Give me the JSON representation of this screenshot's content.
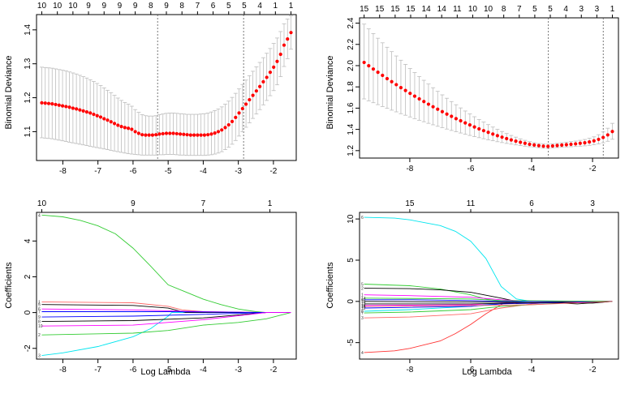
{
  "chart_data": [
    {
      "type": "scatter",
      "panel": "cv-deviance-left",
      "xlabel": "",
      "ylabel": "Binomial Deviance",
      "xlim": [
        -8.75,
        -1.35
      ],
      "ylim": [
        1.015,
        1.445
      ],
      "xticks": [
        "-8",
        "-7",
        "-6",
        "-5",
        "-4",
        "-3",
        "-2"
      ],
      "yticks": [
        "1.1",
        "1.2",
        "1.3",
        "1.4"
      ],
      "top_labels": [
        "10",
        "10",
        "10",
        "9",
        "9",
        "9",
        "9",
        "8",
        "9",
        "8",
        "7",
        "6",
        "5",
        "5",
        "4",
        "1",
        "1"
      ],
      "vlines": [
        -5.3,
        -2.85
      ],
      "point_color": "#ff0000",
      "errorbar_color": "#bdbdbd",
      "x_range": [
        -8.6,
        -1.5
      ],
      "y": [
        1.185,
        1.184,
        1.183,
        1.182,
        1.18,
        1.178,
        1.176,
        1.174,
        1.172,
        1.169,
        1.167,
        1.164,
        1.161,
        1.158,
        1.155,
        1.151,
        1.147,
        1.143,
        1.138,
        1.134,
        1.129,
        1.124,
        1.119,
        1.115,
        1.112,
        1.11,
        1.107,
        1.1,
        1.095,
        1.091,
        1.09,
        1.09,
        1.09,
        1.091,
        1.093,
        1.094,
        1.095,
        1.095,
        1.095,
        1.094,
        1.093,
        1.092,
        1.091,
        1.09,
        1.09,
        1.09,
        1.09,
        1.09,
        1.091,
        1.093,
        1.096,
        1.1,
        1.105,
        1.112,
        1.12,
        1.13,
        1.142,
        1.155,
        1.168,
        1.181,
        1.194,
        1.207,
        1.22,
        1.233,
        1.247,
        1.26,
        1.275,
        1.29,
        1.307,
        1.328,
        1.355,
        1.373,
        1.392
      ],
      "y_upper": [
        1.29,
        1.289,
        1.288,
        1.287,
        1.285,
        1.283,
        1.281,
        1.279,
        1.276,
        1.273,
        1.27,
        1.266,
        1.262,
        1.258,
        1.253,
        1.248,
        1.242,
        1.236,
        1.229,
        1.222,
        1.215,
        1.207,
        1.199,
        1.192,
        1.186,
        1.181,
        1.175,
        1.165,
        1.157,
        1.15,
        1.147,
        1.146,
        1.146,
        1.147,
        1.15,
        1.152,
        1.154,
        1.155,
        1.155,
        1.154,
        1.153,
        1.152,
        1.151,
        1.151,
        1.151,
        1.151,
        1.152,
        1.153,
        1.155,
        1.158,
        1.162,
        1.167,
        1.173,
        1.181,
        1.19,
        1.201,
        1.213,
        1.226,
        1.239,
        1.252,
        1.265,
        1.278,
        1.291,
        1.304,
        1.318,
        1.331,
        1.345,
        1.36,
        1.376,
        1.395,
        1.418,
        1.432,
        1.441
      ],
      "y_lower": [
        1.082,
        1.081,
        1.08,
        1.079,
        1.077,
        1.075,
        1.073,
        1.071,
        1.069,
        1.067,
        1.065,
        1.063,
        1.061,
        1.059,
        1.057,
        1.055,
        1.053,
        1.051,
        1.049,
        1.047,
        1.045,
        1.043,
        1.041,
        1.039,
        1.037,
        1.035,
        1.034,
        1.033,
        1.032,
        1.031,
        1.031,
        1.031,
        1.031,
        1.031,
        1.032,
        1.032,
        1.033,
        1.033,
        1.033,
        1.032,
        1.031,
        1.031,
        1.03,
        1.03,
        1.03,
        1.03,
        1.03,
        1.03,
        1.031,
        1.032,
        1.034,
        1.037,
        1.041,
        1.047,
        1.054,
        1.063,
        1.074,
        1.087,
        1.1,
        1.113,
        1.126,
        1.139,
        1.152,
        1.165,
        1.179,
        1.192,
        1.206,
        1.221,
        1.238,
        1.262,
        1.292,
        1.315,
        1.343
      ]
    },
    {
      "type": "scatter",
      "panel": "cv-deviance-right",
      "xlabel": "",
      "ylabel": "Binomial Deviance",
      "xlim": [
        -9.65,
        -1.15
      ],
      "ylim": [
        1.13,
        2.45
      ],
      "xticks": [
        "-8",
        "-6",
        "-4",
        "-2"
      ],
      "yticks": [
        "1.2",
        "1.4",
        "1.6",
        "1.8",
        "2.0",
        "2.2",
        "2.4"
      ],
      "top_labels": [
        "15",
        "15",
        "15",
        "15",
        "14",
        "14",
        "11",
        "10",
        "10",
        "8",
        "7",
        "5",
        "5",
        "4",
        "3",
        "3",
        "1"
      ],
      "vlines": [
        -3.45,
        -1.65
      ],
      "point_color": "#ff0000",
      "errorbar_color": "#bdbdbd",
      "x_range": [
        -9.5,
        -1.35
      ],
      "y_start": 2.03,
      "y_min": 1.24,
      "y_min_x": -3.45,
      "y_end": 1.38
    },
    {
      "type": "line",
      "panel": "coef-path-left",
      "xlabel": "Log Lambda",
      "ylabel": "Coefficients",
      "xlim": [
        -8.75,
        -1.35
      ],
      "ylim": [
        -2.6,
        5.6
      ],
      "xticks": [
        "-8",
        "-7",
        "-6",
        "-5",
        "-4",
        "-3",
        "-2"
      ],
      "yticks": [
        "-2",
        "0",
        "2",
        "4"
      ],
      "top_labels": [
        "10",
        "9",
        "7",
        "1"
      ],
      "top_label_positions": [
        -8.6,
        -6.0,
        -4.0,
        -2.1
      ],
      "path_labels": [
        "4",
        "3",
        "2",
        "1",
        "5",
        "6",
        "7",
        "8",
        "9",
        "10"
      ],
      "series": [
        {
          "color": "#33cc33",
          "x": [
            -8.6,
            -8.0,
            -7.5,
            -7.0,
            -6.5,
            -6.0,
            -5.5,
            -5.0,
            -4.5,
            -4.0,
            -3.5,
            -3.0,
            -2.5,
            -2.2,
            -1.5
          ],
          "y": [
            5.45,
            5.35,
            5.15,
            4.85,
            4.4,
            3.6,
            2.6,
            1.55,
            1.15,
            0.75,
            0.45,
            0.2,
            0.05,
            0.0,
            0.0
          ]
        },
        {
          "color": "#00e5ee",
          "x": [
            -8.6,
            -8.0,
            -7.0,
            -6.0,
            -5.5,
            -5.0,
            -4.9,
            -1.5
          ],
          "y": [
            -2.4,
            -2.25,
            -1.9,
            -1.35,
            -0.9,
            -0.2,
            0.0,
            0.0
          ]
        },
        {
          "color": "#33cc33",
          "x": [
            -8.6,
            -6.0,
            -5.0,
            -4.0,
            -3.0,
            -2.2,
            -1.5
          ],
          "y": [
            -1.25,
            -1.15,
            -1.0,
            -0.7,
            -0.55,
            -0.35,
            0.0
          ]
        },
        {
          "color": "#ff6666",
          "x": [
            -8.6,
            -6.0,
            -5.0,
            -4.6,
            -4.0,
            -2.2,
            -1.5
          ],
          "y": [
            0.6,
            0.55,
            0.35,
            0.15,
            0.05,
            0.0,
            0.0
          ]
        },
        {
          "color": "#000000",
          "x": [
            -8.6,
            -6.0,
            -5.0,
            -4.5,
            -1.5
          ],
          "y": [
            0.45,
            0.4,
            0.25,
            0.0,
            0.0
          ]
        },
        {
          "color": "#ff00ff",
          "x": [
            -8.6,
            -6.0,
            -5.0,
            -4.0,
            -2.2,
            -1.5
          ],
          "y": [
            0.2,
            0.15,
            0.1,
            0.05,
            0.0,
            0.0
          ]
        },
        {
          "color": "#0000ff",
          "x": [
            -8.6,
            -5.0,
            -2.2,
            -1.5
          ],
          "y": [
            0.05,
            0.05,
            0.0,
            0.0
          ]
        },
        {
          "color": "#000000",
          "x": [
            -8.6,
            -6.0,
            -4.0,
            -2.2,
            -1.5
          ],
          "y": [
            -0.5,
            -0.45,
            -0.3,
            0.0,
            0.0
          ]
        },
        {
          "color": "#0000ff",
          "x": [
            -8.6,
            -6.0,
            -4.0,
            -2.2,
            -1.5
          ],
          "y": [
            -0.25,
            -0.2,
            -0.1,
            0.0,
            0.0
          ]
        },
        {
          "color": "#ff00ff",
          "x": [
            -8.6,
            -6.0,
            -4.0,
            -2.2,
            -1.5
          ],
          "y": [
            -0.75,
            -0.7,
            -0.4,
            0.0,
            0.0
          ]
        }
      ]
    },
    {
      "type": "line",
      "panel": "coef-path-right",
      "xlabel": "Log Lambda",
      "ylabel": "Coefficients",
      "xlim": [
        -9.65,
        -1.15
      ],
      "ylim": [
        -7.0,
        10.8
      ],
      "xticks": [
        "-8",
        "-6",
        "-4",
        "-2"
      ],
      "yticks": [
        "-5",
        "0",
        "5",
        "10"
      ],
      "top_labels": [
        "15",
        "11",
        "6",
        "3"
      ],
      "top_label_positions": [
        -8.0,
        -6.0,
        -4.0,
        -2.0
      ],
      "path_labels": [
        "6",
        "4",
        "5",
        "2",
        "1",
        "3",
        "7",
        "8",
        "9",
        "10",
        "11",
        "12",
        "13",
        "14",
        "15"
      ],
      "series": [
        {
          "color": "#00e5ee",
          "x": [
            -9.5,
            -8.5,
            -8.0,
            -7.0,
            -6.5,
            -6.0,
            -5.5,
            -5.0,
            -4.5,
            -4.0,
            -1.35
          ],
          "y": [
            10.2,
            10.1,
            9.9,
            9.2,
            8.5,
            7.3,
            5.2,
            1.8,
            0.3,
            0.0,
            0.0
          ]
        },
        {
          "color": "#ff3333",
          "x": [
            -9.5,
            -8.5,
            -8.0,
            -7.0,
            -6.5,
            -6.0,
            -5.5,
            -5.0,
            -4.8,
            -1.35
          ],
          "y": [
            -6.2,
            -6.0,
            -5.7,
            -4.8,
            -3.9,
            -2.8,
            -1.5,
            -0.4,
            0.0,
            0.0
          ]
        },
        {
          "color": "#33cc33",
          "x": [
            -9.5,
            -8.0,
            -7.0,
            -6.0,
            -5.5,
            -5.0,
            -1.35
          ],
          "y": [
            2.1,
            1.9,
            1.5,
            0.8,
            0.3,
            0.0,
            0.0
          ]
        },
        {
          "color": "#000000",
          "x": [
            -9.5,
            -8.0,
            -7.0,
            -6.0,
            -5.0,
            -4.5,
            -1.35
          ],
          "y": [
            1.6,
            1.55,
            1.4,
            1.1,
            0.4,
            0.0,
            0.0
          ]
        },
        {
          "color": "#ff00ff",
          "x": [
            -9.5,
            -8.0,
            -6.0,
            -5.0,
            -4.0,
            -1.35
          ],
          "y": [
            0.8,
            0.7,
            0.5,
            0.2,
            0.0,
            0.0
          ]
        },
        {
          "color": "#ff6666",
          "x": [
            -9.5,
            -8.0,
            -6.0,
            -5.0,
            -4.0,
            -3.0,
            -1.35
          ],
          "y": [
            -2.0,
            -1.9,
            -1.5,
            -0.8,
            -0.3,
            0.0,
            0.0
          ]
        },
        {
          "color": "#33cc33",
          "x": [
            -9.5,
            -8.0,
            -6.0,
            -5.0,
            -4.0,
            -3.0,
            -2.0,
            -1.35
          ],
          "y": [
            -1.4,
            -1.3,
            -1.0,
            -0.6,
            -0.4,
            -0.2,
            -0.1,
            0.0
          ]
        },
        {
          "color": "#00e5ee",
          "x": [
            -9.5,
            -8.0,
            -6.0,
            -5.0,
            -4.0,
            -1.35
          ],
          "y": [
            -1.2,
            -1.0,
            -0.6,
            -0.2,
            0.0,
            0.0
          ]
        },
        {
          "color": "#0000ff",
          "x": [
            -9.5,
            -8.0,
            -6.0,
            -5.0,
            -1.35
          ],
          "y": [
            0.2,
            0.2,
            0.1,
            0.0,
            0.0
          ]
        },
        {
          "color": "#000000",
          "x": [
            -9.5,
            -5.0,
            -3.0,
            -2.5,
            -1.35
          ],
          "y": [
            0.0,
            -0.1,
            -0.2,
            -0.3,
            0.0
          ]
        },
        {
          "color": "#ff00ff",
          "x": [
            -9.5,
            -6.0,
            -5.0,
            -1.35
          ],
          "y": [
            -0.5,
            -0.4,
            -0.2,
            0.0
          ]
        },
        {
          "color": "#0000ff",
          "x": [
            -9.5,
            -6.0,
            -5.0,
            -1.35
          ],
          "y": [
            -0.8,
            -0.6,
            -0.3,
            0.0
          ]
        },
        {
          "color": "#000000",
          "x": [
            -9.5,
            -6.0,
            -3.0,
            -2.0,
            -1.35
          ],
          "y": [
            -0.3,
            -0.3,
            -0.1,
            -0.2,
            0.0
          ]
        },
        {
          "color": "#33cc33",
          "x": [
            -9.5,
            -6.0,
            -5.0,
            -1.35
          ],
          "y": [
            0.4,
            0.3,
            0.1,
            0.0
          ]
        },
        {
          "color": "#ff6666",
          "x": [
            -9.5,
            -6.0,
            -4.0,
            -1.35
          ],
          "y": [
            -0.6,
            -0.5,
            -0.4,
            0.0
          ]
        }
      ]
    }
  ]
}
